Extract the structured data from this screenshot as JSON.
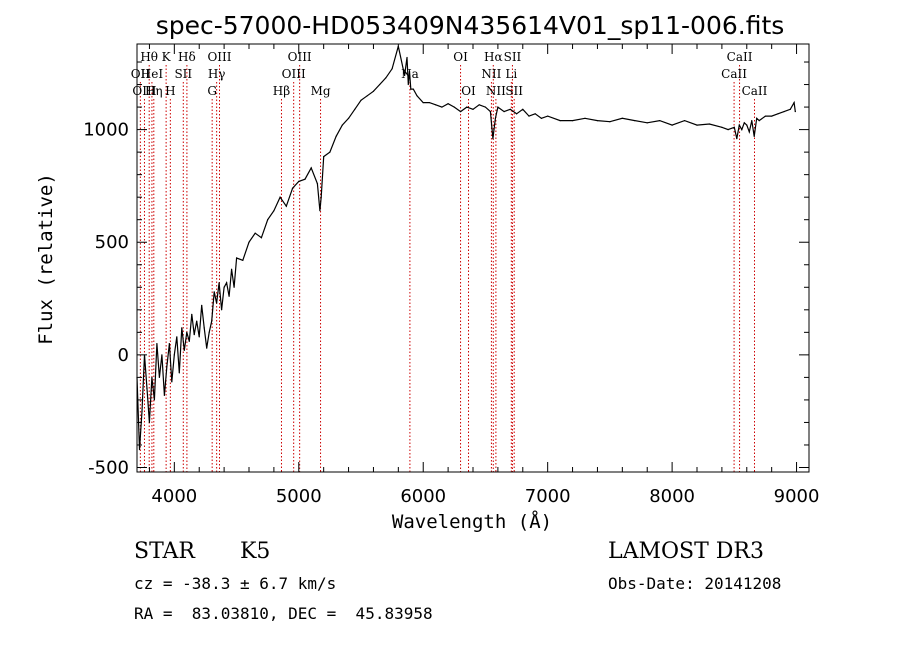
{
  "chart_data": {
    "type": "line",
    "title": "spec-57000-HD053409N435614V01_sp11-006.fits",
    "xlabel": "Wavelength (Å)",
    "ylabel": "Flux (relative)",
    "xlim": [
      3700,
      9100
    ],
    "ylim": [
      -520,
      1380
    ],
    "xticks": [
      4000,
      5000,
      6000,
      7000,
      8000,
      9000
    ],
    "yticks": [
      -500,
      0,
      500,
      1000
    ],
    "line_color": "#000000",
    "marker_color": "#cc0000",
    "series": [
      {
        "name": "flux",
        "x": [
          3700,
          3720,
          3740,
          3760,
          3780,
          3800,
          3820,
          3840,
          3860,
          3880,
          3900,
          3920,
          3940,
          3960,
          3980,
          4000,
          4020,
          4040,
          4060,
          4080,
          4100,
          4120,
          4140,
          4160,
          4180,
          4200,
          4220,
          4240,
          4260,
          4280,
          4300,
          4320,
          4340,
          4360,
          4380,
          4400,
          4420,
          4440,
          4460,
          4480,
          4500,
          4550,
          4600,
          4650,
          4700,
          4750,
          4800,
          4850,
          4900,
          4950,
          5000,
          5050,
          5100,
          5150,
          5170,
          5180,
          5200,
          5250,
          5300,
          5350,
          5400,
          5450,
          5500,
          5550,
          5600,
          5650,
          5700,
          5750,
          5800,
          5850,
          5870,
          5880,
          5890,
          5900,
          5920,
          5950,
          6000,
          6050,
          6100,
          6150,
          6200,
          6250,
          6300,
          6350,
          6400,
          6450,
          6500,
          6540,
          6560,
          6580,
          6600,
          6650,
          6700,
          6750,
          6800,
          6850,
          6900,
          6950,
          7000,
          7100,
          7200,
          7300,
          7400,
          7500,
          7600,
          7700,
          7800,
          7900,
          8000,
          8100,
          8200,
          8300,
          8400,
          8450,
          8500,
          8520,
          8540,
          8560,
          8580,
          8600,
          8620,
          8640,
          8660,
          8680,
          8700,
          8750,
          8800,
          8850,
          8900,
          8950,
          8980,
          8990
        ],
        "y": [
          -100,
          -420,
          -250,
          0,
          -150,
          -300,
          -100,
          -200,
          50,
          -100,
          0,
          -180,
          -50,
          50,
          -120,
          0,
          80,
          -80,
          120,
          20,
          100,
          60,
          180,
          90,
          150,
          80,
          220,
          120,
          30,
          100,
          150,
          280,
          230,
          320,
          200,
          300,
          320,
          260,
          380,
          300,
          430,
          420,
          500,
          540,
          520,
          600,
          640,
          700,
          660,
          740,
          770,
          780,
          830,
          760,
          640,
          700,
          880,
          900,
          970,
          1020,
          1050,
          1090,
          1130,
          1150,
          1170,
          1200,
          1230,
          1270,
          1370,
          1240,
          1320,
          1200,
          1260,
          1180,
          1180,
          1150,
          1120,
          1120,
          1110,
          1100,
          1115,
          1100,
          1080,
          1100,
          1090,
          1110,
          1100,
          1080,
          960,
          1050,
          1100,
          1080,
          1090,
          1070,
          1090,
          1060,
          1070,
          1050,
          1060,
          1040,
          1040,
          1050,
          1040,
          1035,
          1050,
          1040,
          1030,
          1040,
          1020,
          1040,
          1020,
          1025,
          1010,
          1000,
          1010,
          960,
          1020,
          1000,
          1030,
          1020,
          990,
          1040,
          970,
          1050,
          1040,
          1060,
          1060,
          1070,
          1080,
          1090,
          1120,
          1080
        ]
      }
    ],
    "line_markers": [
      {
        "label": "Hθ",
        "x": 3798,
        "row": 0
      },
      {
        "label": "OII",
        "x": 3727,
        "row": 1
      },
      {
        "label": "OIII",
        "x": 3760,
        "row": 2
      },
      {
        "label": "HeI",
        "x": 3820,
        "row": 1
      },
      {
        "label": "Hη",
        "x": 3835,
        "row": 2
      },
      {
        "label": "K",
        "x": 3934,
        "row": 0
      },
      {
        "label": "SII",
        "x": 4072,
        "row": 1
      },
      {
        "label": "H",
        "x": 3968,
        "row": 2
      },
      {
        "label": "Hδ",
        "x": 4101,
        "row": 0
      },
      {
        "label": "OIII",
        "x": 4363,
        "row": 0
      },
      {
        "label": "Hγ",
        "x": 4340,
        "row": 1
      },
      {
        "label": "G",
        "x": 4304,
        "row": 2
      },
      {
        "label": "OIII",
        "x": 5007,
        "row": 0
      },
      {
        "label": "OIII",
        "x": 4959,
        "row": 1
      },
      {
        "label": "Hβ",
        "x": 4861,
        "row": 2
      },
      {
        "label": "Mg",
        "x": 5175,
        "row": 2
      },
      {
        "label": "Na",
        "x": 5893,
        "row": 1
      },
      {
        "label": "OI",
        "x": 6300,
        "row": 0
      },
      {
        "label": "OI",
        "x": 6364,
        "row": 2
      },
      {
        "label": "Hα",
        "x": 6563,
        "row": 0
      },
      {
        "label": "NII",
        "x": 6548,
        "row": 1
      },
      {
        "label": "NII",
        "x": 6584,
        "row": 2
      },
      {
        "label": "SII",
        "x": 6717,
        "row": 0
      },
      {
        "label": "Li",
        "x": 6708,
        "row": 1
      },
      {
        "label": "SII",
        "x": 6731,
        "row": 2
      },
      {
        "label": "CaII",
        "x": 8542,
        "row": 0
      },
      {
        "label": "CaII",
        "x": 8498,
        "row": 1
      },
      {
        "label": "CaII",
        "x": 8662,
        "row": 2
      }
    ]
  },
  "info": {
    "object_class": "STAR",
    "subclass": "K5",
    "survey": "LAMOST DR3",
    "redshift": "cz = -38.3 ± 6.7 km/s",
    "obs_date": "Obs-Date: 20141208",
    "coords": "RA =  83.03810, DEC =  45.83958"
  }
}
